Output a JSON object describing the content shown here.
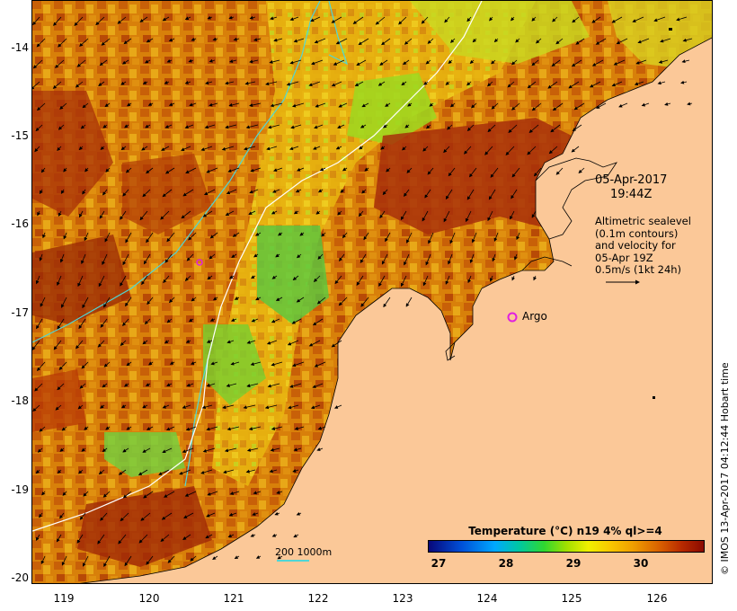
{
  "map": {
    "lat_ticks": [
      "-14",
      "-15",
      "-16",
      "-17",
      "-18",
      "-19",
      "-20"
    ],
    "lon_ticks": [
      "119",
      "120",
      "121",
      "122",
      "123",
      "124",
      "125",
      "126"
    ],
    "date_label": "05-Apr-2017",
    "time_label": "19:44Z",
    "info_lines": [
      "Altimetric sealevel",
      "(0.1m contours)",
      "and velocity for",
      "05-Apr 19Z",
      "0.5m/s (1kt 24h)"
    ],
    "argo_label": "Argo",
    "depth_legend": "200  1000m",
    "colorbar_title": "Temperature (°C) n19 4% ql>=4",
    "colorbar_ticks": [
      "27",
      "28",
      "29",
      "30"
    ],
    "credit": "© IMOS 13-Apr-2017 04:12:44 Hobart time",
    "colors": {
      "land": "#fbc898",
      "sst_warm": "#b83a08",
      "sst_mid": "#e69a10",
      "sst_cool": "#c8d820",
      "argo": "#e020e0",
      "contour_200m": "#4fd6d6",
      "contour_1000m": "#ffffff"
    }
  }
}
